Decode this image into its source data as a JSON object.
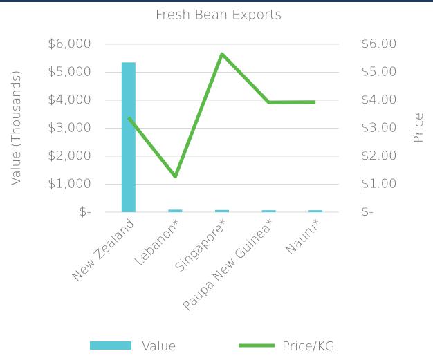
{
  "chart_data": {
    "type": "combo",
    "title": "Fresh Bean Exports",
    "y_label": "Value (Thousands)",
    "y2_label": "Price",
    "categories": [
      "New Zealand",
      "Lebanon*",
      "Singapore*",
      "Paupa New Guinea*",
      "Nauru*"
    ],
    "series": [
      {
        "name": "Value",
        "type": "bar",
        "color": "#5bc8d8",
        "values": [
          5350,
          90,
          80,
          70,
          70
        ]
      },
      {
        "name": "Price/KG",
        "type": "line",
        "axis": "y2",
        "color": "#5ab947",
        "values": [
          3.38,
          1.27,
          5.65,
          3.92,
          3.93
        ]
      }
    ],
    "ylim": [
      0,
      6000
    ],
    "yticks": [
      {
        "value": 0,
        "label": "$-"
      },
      {
        "value": 1000,
        "label": "$1,000"
      },
      {
        "value": 2000,
        "label": "$2,000"
      },
      {
        "value": 3000,
        "label": "$3,000"
      },
      {
        "value": 4000,
        "label": "$4,000"
      },
      {
        "value": 5000,
        "label": "$5,000"
      },
      {
        "value": 6000,
        "label": "$6,000"
      }
    ],
    "y2lim": [
      0,
      6
    ],
    "y2ticks": [
      {
        "value": 0,
        "label": "$-"
      },
      {
        "value": 1,
        "label": "$1.00"
      },
      {
        "value": 2,
        "label": "$2.00"
      },
      {
        "value": 3,
        "label": "$3.00"
      },
      {
        "value": 4,
        "label": "$4.00"
      },
      {
        "value": 5,
        "label": "$5.00"
      },
      {
        "value": 6,
        "label": "$6.00"
      }
    ],
    "grid": true,
    "legend": "bottom"
  }
}
